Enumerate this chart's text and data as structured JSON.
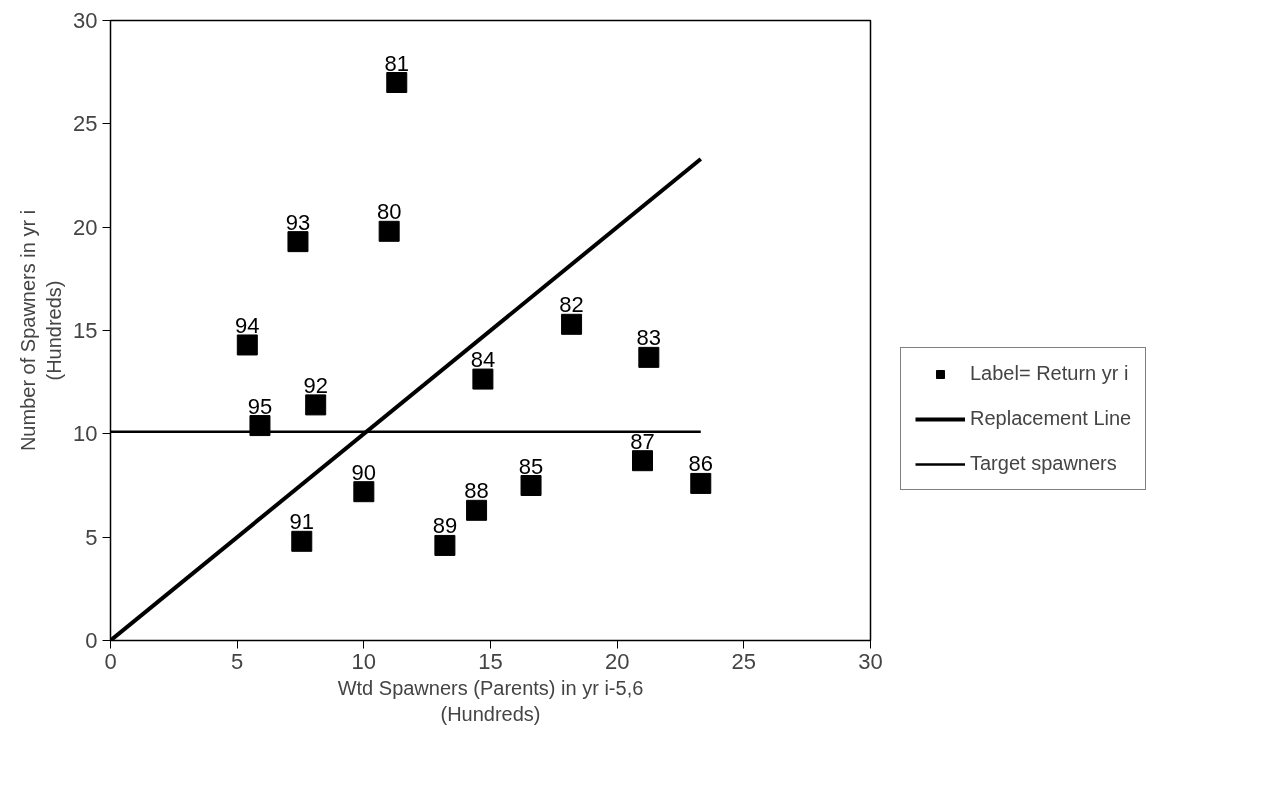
{
  "chart_data": {
    "type": "scatter",
    "xlabel": "Wtd Spawners (Parents) in yr i-5,6\n(Hundreds)",
    "ylabel": "Number of Spawners in yr i\n(Hundreds)",
    "xlim": [
      0,
      30
    ],
    "ylim": [
      0,
      30
    ],
    "xticks": [
      0,
      5,
      10,
      15,
      20,
      25,
      30
    ],
    "yticks": [
      0,
      5,
      10,
      15,
      20,
      25,
      30
    ],
    "grid": false,
    "legend": "right",
    "marker": "square",
    "series": [
      {
        "name": "Label= Return yr i",
        "type": "scatter",
        "color": "#000000",
        "x": [
          11.0,
          11.3,
          18.2,
          21.25,
          14.7,
          16.6,
          23.3,
          21.0,
          14.45,
          13.2,
          10.0,
          7.55,
          8.1,
          7.4,
          5.4,
          5.9
        ],
        "values": [
          19.8,
          27.0,
          15.3,
          13.7,
          12.65,
          7.5,
          7.6,
          8.7,
          6.3,
          4.6,
          7.2,
          4.8,
          11.4,
          19.3,
          14.3,
          10.4
        ]
      },
      {
        "name": "Replacement Line",
        "type": "line",
        "marker": "none",
        "color": "#000000",
        "line_style": "solid",
        "x": [
          0,
          23.3
        ],
        "values": [
          0,
          23.3
        ]
      },
      {
        "name": "Target spawners",
        "type": "line",
        "marker": "none",
        "color": "#000000",
        "line_style": "solid",
        "x": [
          0,
          23.3
        ],
        "values": [
          10.1,
          10.1
        ]
      }
    ],
    "annotations": [
      {
        "text": "80",
        "x": 11.0,
        "y": 19.8
      },
      {
        "text": "81",
        "x": 11.3,
        "y": 27.0
      },
      {
        "text": "82",
        "x": 18.2,
        "y": 15.3
      },
      {
        "text": "83",
        "x": 21.25,
        "y": 13.7
      },
      {
        "text": "84",
        "x": 14.7,
        "y": 12.65
      },
      {
        "text": "85",
        "x": 16.6,
        "y": 7.5
      },
      {
        "text": "86",
        "x": 23.3,
        "y": 7.6
      },
      {
        "text": "87",
        "x": 21.0,
        "y": 8.7
      },
      {
        "text": "88",
        "x": 14.45,
        "y": 6.3
      },
      {
        "text": "89",
        "x": 13.2,
        "y": 4.6
      },
      {
        "text": "90",
        "x": 10.0,
        "y": 7.2
      },
      {
        "text": "91",
        "x": 7.55,
        "y": 4.8
      },
      {
        "text": "92",
        "x": 8.1,
        "y": 11.4
      },
      {
        "text": "93",
        "x": 7.4,
        "y": 19.3
      },
      {
        "text": "94",
        "x": 5.4,
        "y": 14.3
      },
      {
        "text": "95",
        "x": 5.9,
        "y": 10.4
      }
    ]
  }
}
